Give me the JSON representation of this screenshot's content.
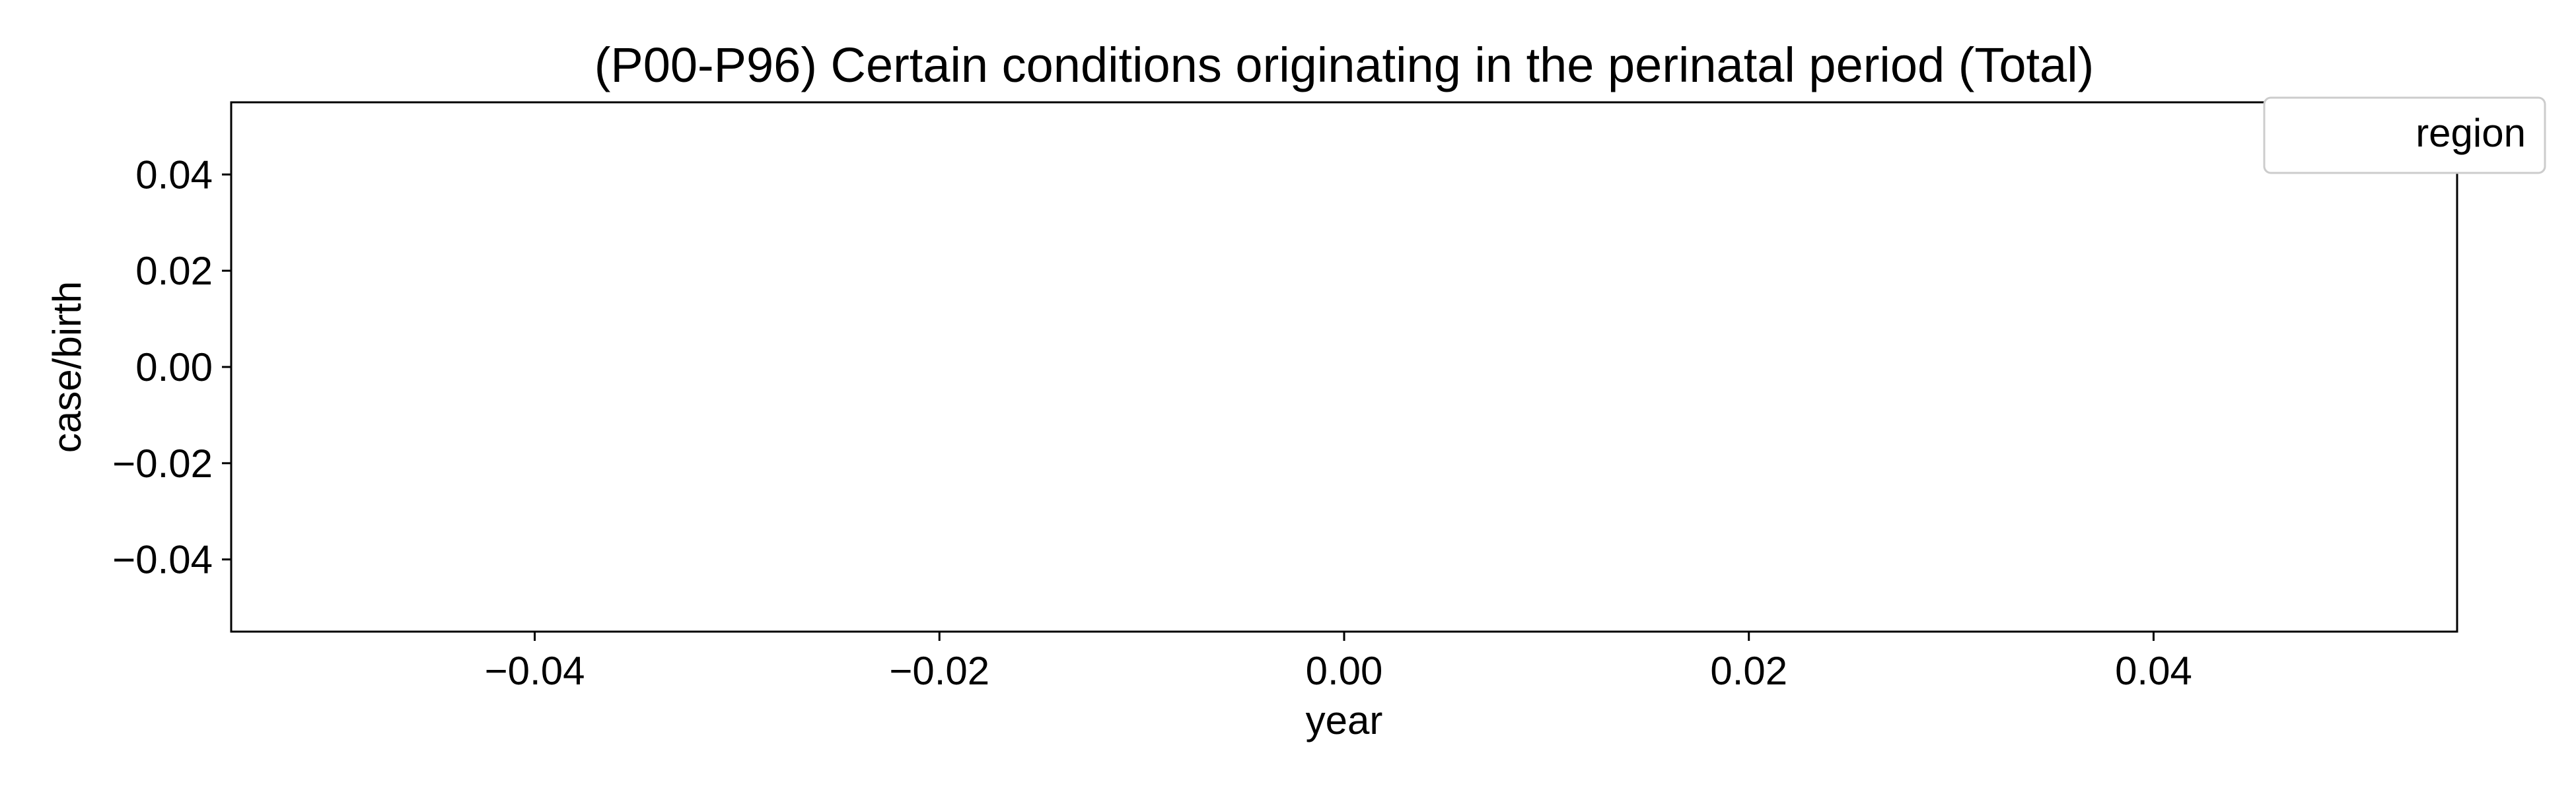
{
  "chart_data": {
    "type": "line",
    "title": "(P00-P96) Certain conditions originating in the perinatal period (Total)",
    "xlabel": "year",
    "ylabel": "case/birth",
    "xlim": [
      -0.055,
      0.055
    ],
    "ylim": [
      -0.055,
      0.055
    ],
    "x_ticks": [
      -0.04,
      -0.02,
      0.0,
      0.02,
      0.04
    ],
    "x_tick_labels": [
      "−0.04",
      "−0.02",
      "0.00",
      "0.02",
      "0.04"
    ],
    "y_ticks": [
      -0.04,
      -0.02,
      0.0,
      0.02,
      0.04
    ],
    "y_tick_labels": [
      "−0.04",
      "−0.02",
      "0.00",
      "0.02",
      "0.04"
    ],
    "grid": false,
    "legend": {
      "title": "region",
      "placement": "top-right",
      "entries": []
    },
    "series": []
  }
}
